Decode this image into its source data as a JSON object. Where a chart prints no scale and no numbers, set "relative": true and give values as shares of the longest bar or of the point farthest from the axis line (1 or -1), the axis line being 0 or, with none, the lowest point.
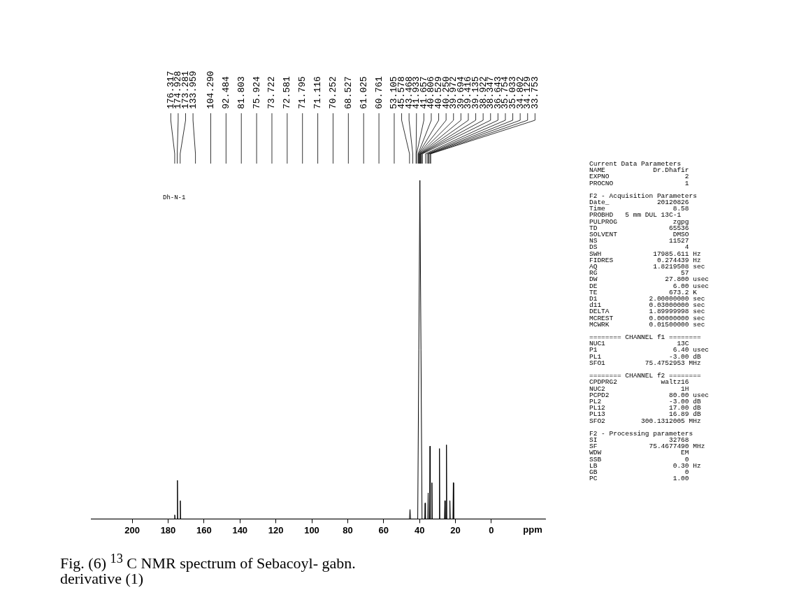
{
  "chart_data": {
    "type": "line",
    "relative": true,
    "title": "Fig. (6) $^{13}$ C NMR spectrum of Sebacoyl- gabn.\nderivative (1)",
    "subtitle": "Dh-N-1",
    "xlabel": "ppm",
    "xlim": [
      223,
      -30
    ],
    "xticks": [
      200,
      180,
      160,
      140,
      120,
      100,
      80,
      60,
      40,
      20,
      0
    ],
    "grid": false,
    "legend": false,
    "x": [
      223,
      176.5,
      176.3,
      176.1,
      175.0,
      174.8,
      174.6,
      173.4,
      173.2,
      173.0,
      45.6,
      45.3,
      45.0,
      41.0,
      40.4,
      39.8,
      39.2,
      38.6,
      37.1,
      36.9,
      36.7,
      35.4,
      35.2,
      35.0,
      34.4,
      34.2,
      34.0,
      33.3,
      33.1,
      32.9,
      29.1,
      28.9,
      28.7,
      26.1,
      25.9,
      25.7,
      25.2,
      25.0,
      24.8,
      23.3,
      23.1,
      22.9,
      21.4,
      21.2,
      21.0,
      -30
    ],
    "series": [
      {
        "color": "#000000",
        "values": [
          0,
          0,
          0.012,
          0,
          0,
          0.114,
          0,
          0,
          0.054,
          0,
          0,
          0.028,
          0,
          0,
          0.5,
          1.0,
          0.5,
          0,
          0,
          0.047,
          0,
          0,
          0.077,
          0,
          0,
          0.215,
          0,
          0,
          0.107,
          0,
          0,
          0.208,
          0,
          0,
          0.054,
          0,
          0,
          0.219,
          0,
          0,
          0.054,
          0,
          0,
          0.107,
          0,
          0
        ]
      }
    ],
    "annotations": [
      {
        "text": "176.317",
        "x": 176.317
      },
      {
        "text": "174.928",
        "x": 174.928
      },
      {
        "text": "173.281",
        "x": 173.281
      },
      "133.959",
      "104.290",
      "92.484",
      "81.803",
      "75.924",
      "73.722",
      "72.581",
      "71.795",
      "71.116",
      "70.252",
      "68.527",
      "61.025",
      "60.761",
      "53.105",
      {
        "text": "45.578",
        "x": 45.578
      },
      "43.468",
      {
        "text": "41.933",
        "x": 41.933
      },
      {
        "text": "41.657",
        "x": 41.657
      },
      {
        "text": "40.806",
        "x": 40.806
      },
      {
        "text": "40.529",
        "x": 40.529
      },
      {
        "text": "40.250",
        "x": 40.25
      },
      {
        "text": "39.972",
        "x": 39.972
      },
      {
        "text": "39.694",
        "x": 39.694
      },
      {
        "text": "39.416",
        "x": 39.416
      },
      {
        "text": "39.135",
        "x": 39.135
      },
      {
        "text": "38.922",
        "x": 38.922
      },
      {
        "text": "38.347",
        "x": 38.347
      },
      {
        "text": "36.643",
        "x": 36.643
      },
      {
        "text": "35.754",
        "x": 35.754
      },
      {
        "text": "35.033",
        "x": 35.033
      },
      {
        "text": "34.802",
        "x": 34.802
      },
      {
        "text": "34.129",
        "x": 34.129
      },
      {
        "text": "33.753",
        "x": 33.753
      },
      "Current Data Parameters\nNAME            Dr.Dhafir\nEXPNO                   2\nPROCNO                  1",
      "F2 - Acquisition Parameters\nDate_            20120826\nTime                 8.58\nPROBHD   5 mm DUL 13C-1\nPULPROG              zgpg\nTD                  65536\nSOLVENT              DMSO\nNS                  11527\nDS                      4\nSWH             17985.611 Hz\nFIDRES           0.274439 Hz\nAQ              1.8219508 sec\nRG                     57\nDW                 27.800 usec\nDE                   6.00 usec\nTE                  673.2 K\nD1             2.00000000 sec\nd11            0.03000000 sec\nDELTA          1.89999998 sec\nMCREST         0.00000000 sec\nMCWRK          0.01500000 sec",
      "======== CHANNEL f1 ========\nNUC1                  13C\nP1                   6.40 usec\nPL1                 -3.00 dB\nSFO1          75.4752953 MHz",
      "======== CHANNEL f2 ========\nCPDPRG2           waltz16\nNUC2                   1H\nPCPD2               80.00 usec\nPL2                 -3.00 dB\nPL12                17.00 dB\nPL13                16.89 dB\nSFO2         300.1312005 MHz",
      "F2 - Processing parameters\nSI                  32768\nSF             75.4677490 MHz\nWDW                    EM\nSSB                     0\nLB                   0.30 Hz\nGB                      0\nPC                   1.00"
    ]
  }
}
